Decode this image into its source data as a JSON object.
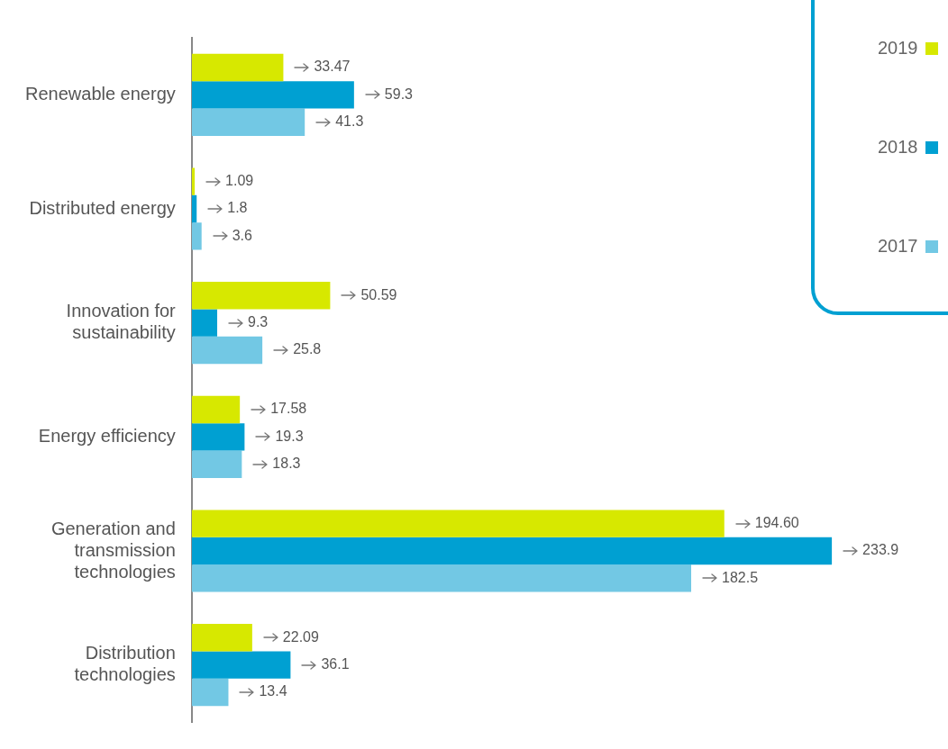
{
  "chart_data": {
    "type": "bar",
    "orientation": "horizontal",
    "categories": [
      "Renewable energy",
      "Distributed energy",
      "Innovation for sustainability",
      "Energy efficiency",
      "Generation and transmission technologies",
      "Distribution technologies"
    ],
    "series": [
      {
        "name": "2019",
        "color": "#d7e800",
        "values": [
          33.47,
          1.09,
          50.59,
          17.58,
          194.6,
          22.09
        ],
        "value_labels": [
          "33.47",
          "1.09",
          "50.59",
          "17.58",
          "194.60",
          "22.09"
        ]
      },
      {
        "name": "2018",
        "color": "#00a0d2",
        "values": [
          59.3,
          1.8,
          9.3,
          19.3,
          233.9,
          36.1
        ],
        "value_labels": [
          "59.3",
          "1.8",
          "9.3",
          "19.3",
          "233.9",
          "36.1"
        ]
      },
      {
        "name": "2017",
        "color": "#72c8e4",
        "values": [
          41.3,
          3.6,
          25.8,
          18.3,
          182.5,
          13.4
        ],
        "value_labels": [
          "41.3",
          "3.6",
          "25.8",
          "18.3",
          "182.5",
          "13.4"
        ]
      }
    ],
    "grid": false,
    "legend": "top right",
    "tick_labels": "y"
  }
}
